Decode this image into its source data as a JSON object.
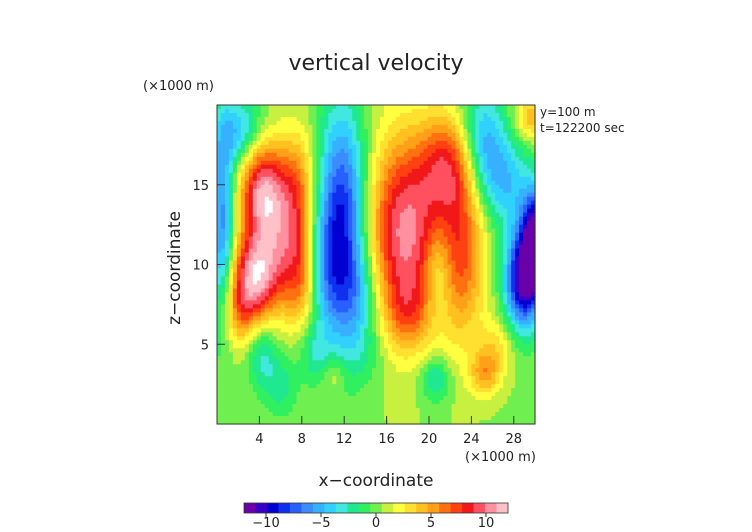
{
  "chart_data": {
    "type": "heatmap",
    "title": "vertical velocity",
    "xlabel": "x−coordinate",
    "ylabel": "z−coordinate",
    "x_unit": "(×1000 m)",
    "y_unit": "(×1000 m)",
    "xlim": [
      0,
      30
    ],
    "ylim": [
      0,
      20
    ],
    "x_ticks": [
      4,
      8,
      12,
      16,
      20,
      24,
      28
    ],
    "y_ticks": [
      5,
      10,
      15
    ],
    "annotations": [
      "y=100 m",
      "t=122200 sec"
    ],
    "colorbar": {
      "min": -12,
      "max": 12,
      "ticks": [
        -10,
        -5,
        0,
        5,
        10
      ],
      "colors": [
        "#6a00a8",
        "#3b00c8",
        "#0000d0",
        "#1030f0",
        "#2860ff",
        "#3a8cff",
        "#36b0ff",
        "#30d0ff",
        "#40e8e0",
        "#20e890",
        "#30f060",
        "#70f050",
        "#c8f040",
        "#ffff40",
        "#ffe030",
        "#ffc020",
        "#ffa018",
        "#ff7010",
        "#ff4010",
        "#f01818",
        "#ff5060",
        "#ff90a0",
        "#ffc0c8"
      ]
    },
    "base_value": 0.4,
    "features": [
      {
        "x": 4.2,
        "z": 14.8,
        "w": 9.0,
        "sx": 1.5,
        "sz": 2.2
      },
      {
        "x": 3.4,
        "z": 9.0,
        "w": 9.5,
        "sx": 1.6,
        "sz": 2.0
      },
      {
        "x": 5.8,
        "z": 11.5,
        "w": 6.0,
        "sx": 1.8,
        "sz": 2.6
      },
      {
        "x": 7.6,
        "z": 14.8,
        "w": 5.0,
        "sx": 1.3,
        "sz": 2.6
      },
      {
        "x": 8.0,
        "z": 9.0,
        "w": 5.0,
        "sx": 1.2,
        "sz": 2.2
      },
      {
        "x": 2.0,
        "z": 6.8,
        "w": 3.0,
        "sx": 1.2,
        "sz": 1.5
      },
      {
        "x": 11.8,
        "z": 12.5,
        "w": -10.0,
        "sx": 1.7,
        "sz": 5.0
      },
      {
        "x": 9.8,
        "z": 9.5,
        "w": -3.0,
        "sx": 1.2,
        "sz": 2.5
      },
      {
        "x": 13.5,
        "z": 8.0,
        "w": -3.0,
        "sx": 1.6,
        "sz": 2.0
      },
      {
        "x": 2.2,
        "z": 18.3,
        "w": -5.0,
        "sx": 1.5,
        "sz": 1.6
      },
      {
        "x": 0.5,
        "z": 12.5,
        "w": -7.0,
        "sx": 0.8,
        "sz": 4.5
      },
      {
        "x": 17.8,
        "z": 12.0,
        "w": 10.0,
        "sx": 2.6,
        "sz": 4.2
      },
      {
        "x": 18.0,
        "z": 7.0,
        "w": 3.0,
        "sx": 1.6,
        "sz": 1.6
      },
      {
        "x": 21.8,
        "z": 16.3,
        "w": 6.0,
        "sx": 1.8,
        "sz": 2.2
      },
      {
        "x": 23.2,
        "z": 11.0,
        "w": 6.0,
        "sx": 1.5,
        "sz": 4.0
      },
      {
        "x": 20.8,
        "z": 9.5,
        "w": -3.0,
        "sx": 0.9,
        "sz": 2.0
      },
      {
        "x": 25.0,
        "z": 17.5,
        "w": -6.0,
        "sx": 1.6,
        "sz": 2.6
      },
      {
        "x": 27.5,
        "z": 15.0,
        "w": -4.0,
        "sx": 1.6,
        "sz": 2.0
      },
      {
        "x": 28.8,
        "z": 9.0,
        "w": -11.0,
        "sx": 1.2,
        "sz": 2.2
      },
      {
        "x": 30.0,
        "z": 11.5,
        "w": -12.0,
        "sx": 0.9,
        "sz": 2.2
      },
      {
        "x": 29.6,
        "z": 19.2,
        "w": 4.0,
        "sx": 1.1,
        "sz": 1.0
      },
      {
        "x": 26.5,
        "z": 5.0,
        "w": 2.5,
        "sx": 1.2,
        "sz": 1.2
      },
      {
        "x": 25.3,
        "z": 3.2,
        "w": 4.5,
        "sx": 1.0,
        "sz": 1.0
      },
      {
        "x": 4.2,
        "z": 4.5,
        "w": -3.5,
        "sx": 1.0,
        "sz": 1.6
      },
      {
        "x": 6.0,
        "z": 2.4,
        "w": -2.5,
        "sx": 1.1,
        "sz": 1.4
      },
      {
        "x": 9.2,
        "z": 4.5,
        "w": -2.5,
        "sx": 1.0,
        "sz": 1.3
      },
      {
        "x": 20.6,
        "z": 2.8,
        "w": -3.5,
        "sx": 1.0,
        "sz": 1.0
      },
      {
        "x": 11.0,
        "z": 3.0,
        "w": 2.0,
        "sx": 0.8,
        "sz": 0.8
      },
      {
        "x": 14.0,
        "z": 4.5,
        "w": -1.5,
        "sx": 1.5,
        "sz": 1.5
      }
    ]
  }
}
